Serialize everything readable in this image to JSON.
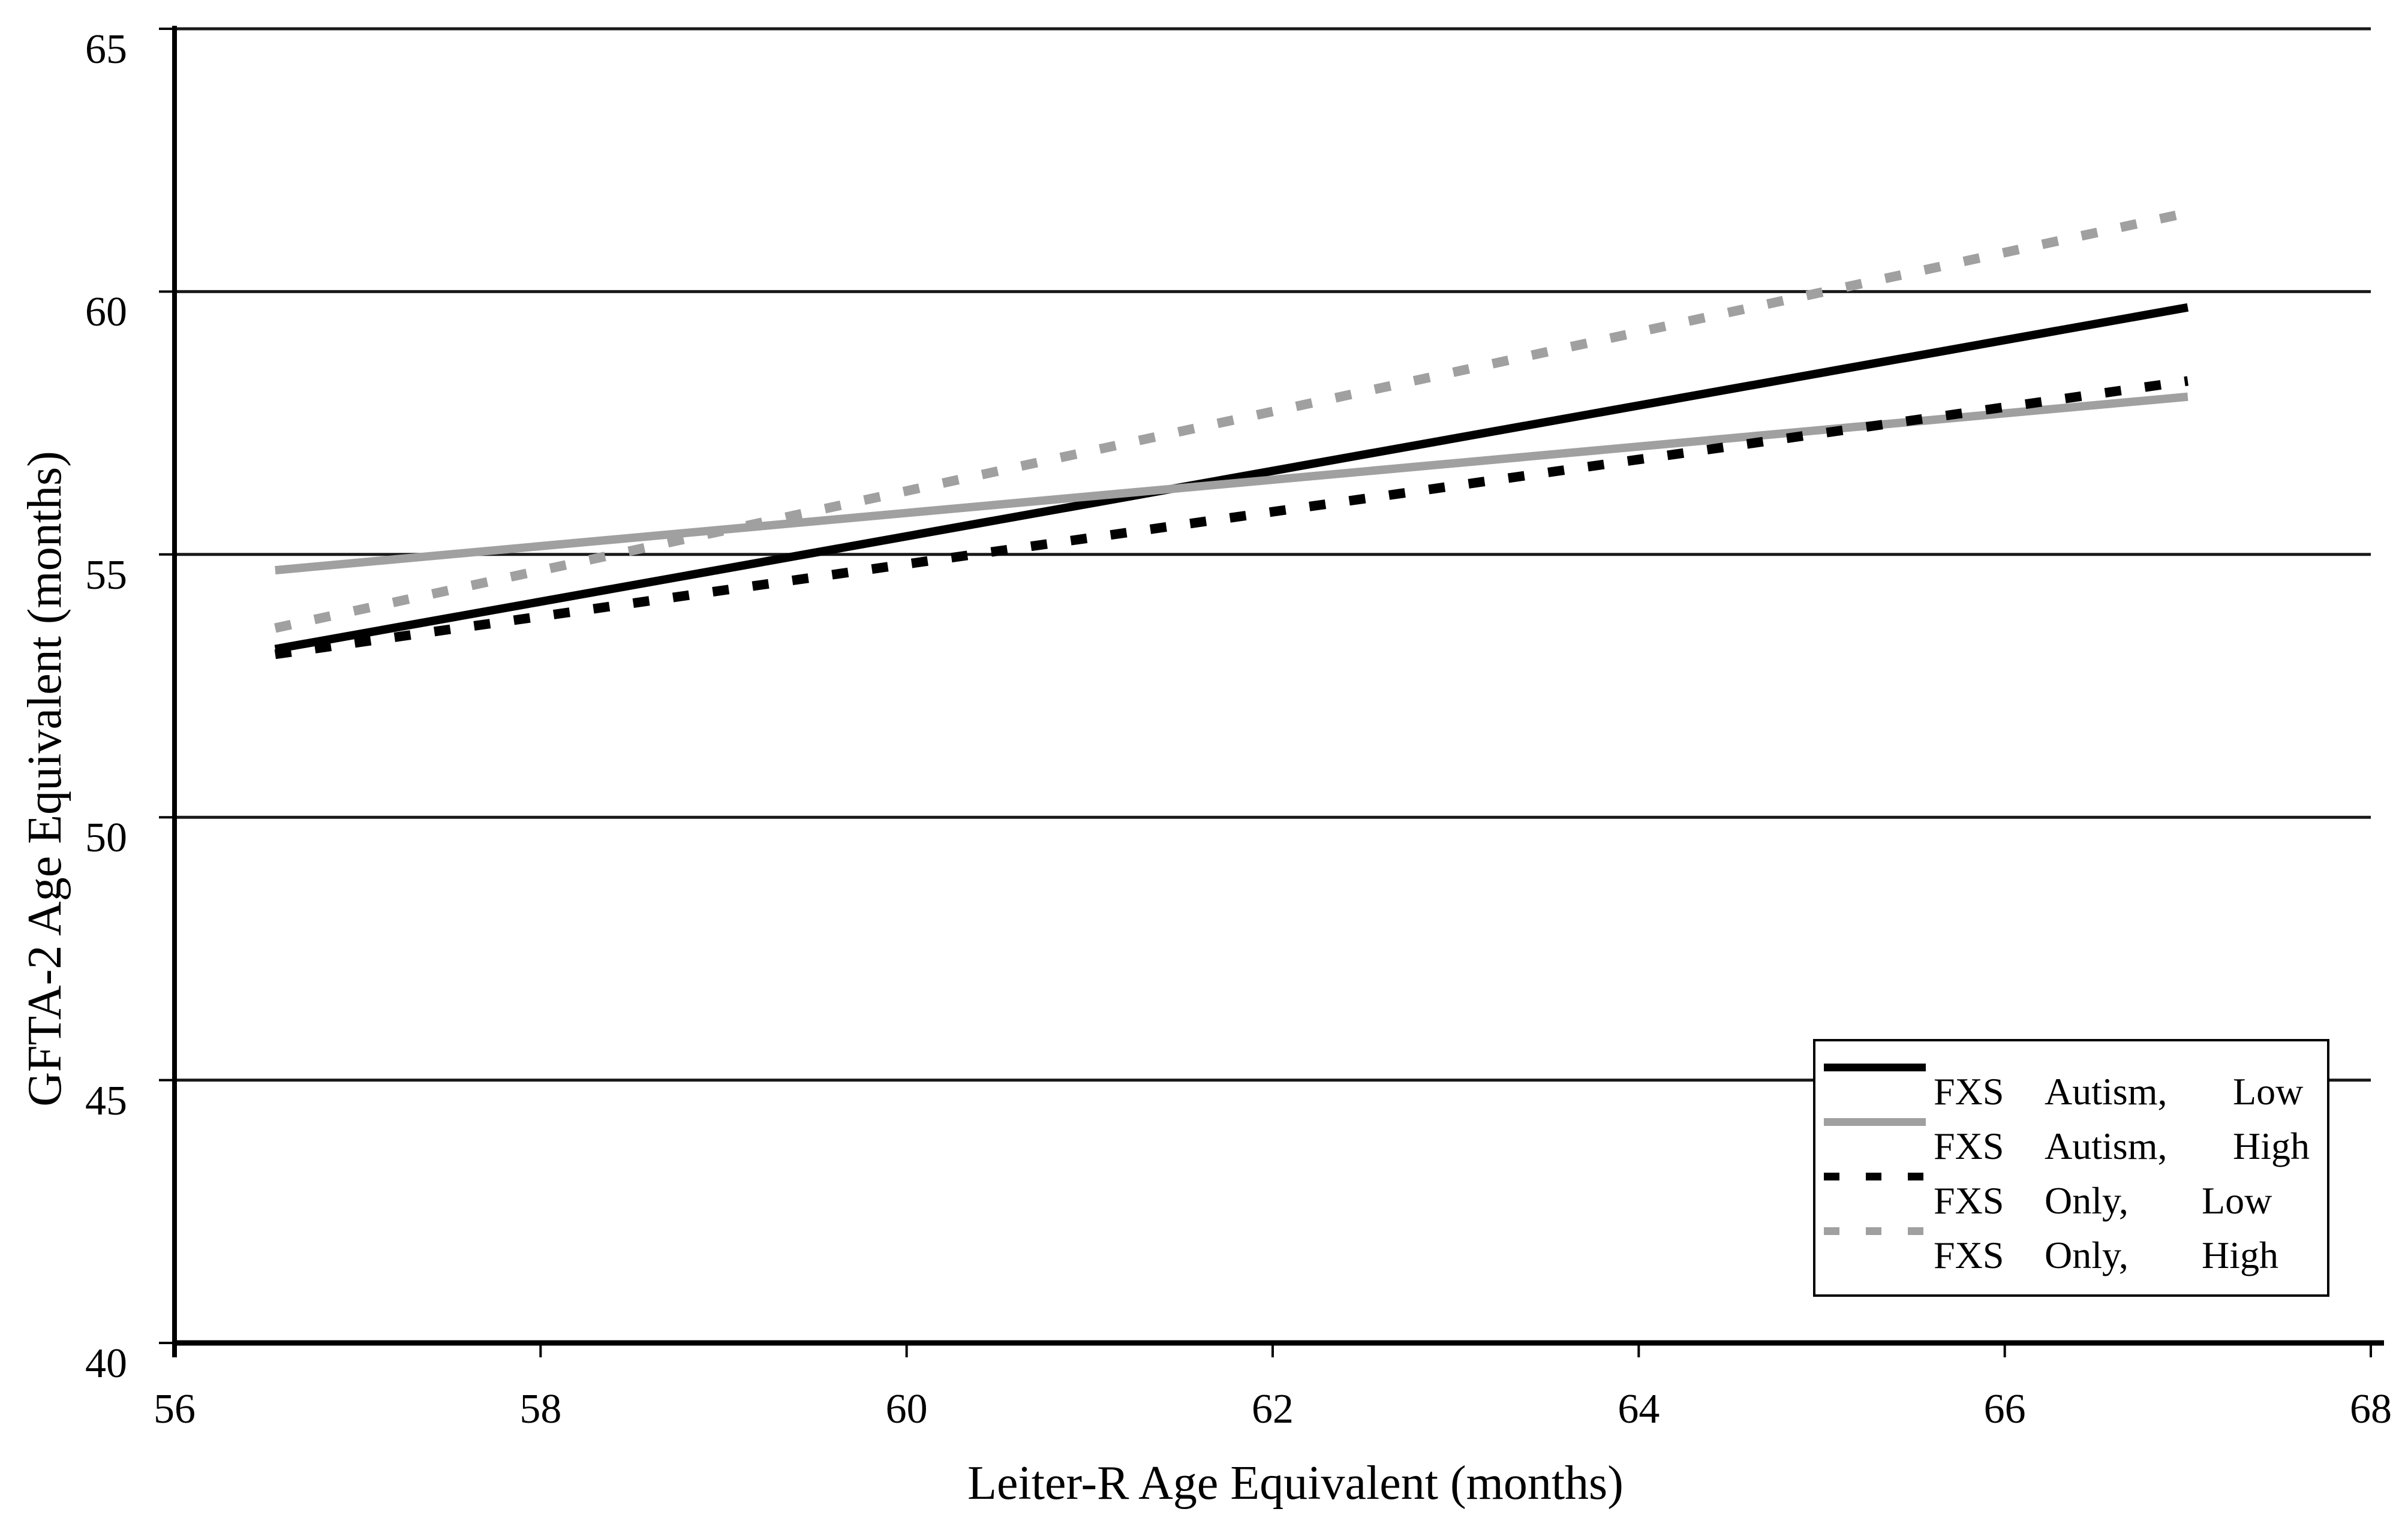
{
  "chart_data": {
    "type": "line",
    "title": "",
    "xlabel": "Leiter-R Age Equivalent (months)",
    "ylabel": "GFTA-2 Age Equivalent (months)",
    "xlim": [
      56,
      68
    ],
    "ylim": [
      40,
      65
    ],
    "x_ticks": [
      56,
      58,
      60,
      62,
      64,
      66,
      68
    ],
    "y_ticks": [
      40,
      45,
      50,
      55,
      60,
      65
    ],
    "grid": "horizontal-only",
    "legend_position": "inside-lower-right",
    "series": [
      {
        "name": "FXS Autism, Low",
        "label_parts": [
          "FXS",
          "Autism,",
          "Low"
        ],
        "style": "solid",
        "color": "#000000",
        "x": [
          56.55,
          67.0
        ],
        "y": [
          53.2,
          59.7
        ]
      },
      {
        "name": "FXS Autism, High",
        "label_parts": [
          "FXS",
          "Autism,",
          "High"
        ],
        "style": "solid",
        "color": "#a0a0a0",
        "x": [
          56.55,
          67.0
        ],
        "y": [
          54.7,
          58.0
        ]
      },
      {
        "name": "FXS Only, Low",
        "label_parts": [
          "FXS",
          "Only,",
          "Low"
        ],
        "style": "dashed",
        "color": "#000000",
        "x": [
          56.55,
          67.0
        ],
        "y": [
          53.1,
          58.3
        ]
      },
      {
        "name": "FXS Only, High",
        "label_parts": [
          "FXS",
          "Only,",
          "High"
        ],
        "style": "dashed",
        "color": "#a0a0a0",
        "x": [
          56.55,
          67.0
        ],
        "y": [
          53.6,
          61.5
        ]
      }
    ]
  },
  "colors": {
    "background": "#ffffff",
    "axis": "#000000",
    "gridline": "#1a1a1a",
    "legend_border": "#000000",
    "black_series": "#000000",
    "gray_series": "#a0a0a0"
  }
}
